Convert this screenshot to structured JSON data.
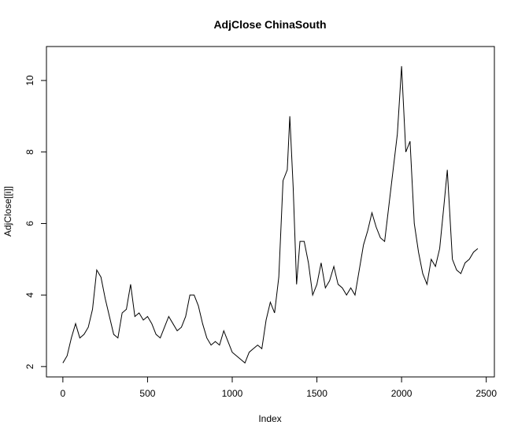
{
  "chart_data": {
    "type": "line",
    "title": "AdjClose ChinaSouth",
    "x_label": "Index",
    "y_label": "AdjClose[[i]]",
    "x": [
      0,
      25,
      50,
      75,
      100,
      125,
      150,
      175,
      200,
      225,
      250,
      275,
      300,
      325,
      350,
      375,
      400,
      425,
      450,
      475,
      500,
      525,
      550,
      575,
      600,
      625,
      650,
      675,
      700,
      725,
      750,
      775,
      800,
      825,
      850,
      875,
      900,
      925,
      950,
      975,
      1000,
      1025,
      1050,
      1075,
      1100,
      1125,
      1150,
      1175,
      1200,
      1225,
      1250,
      1275,
      1300,
      1325,
      1340,
      1360,
      1380,
      1400,
      1425,
      1450,
      1475,
      1500,
      1525,
      1550,
      1575,
      1600,
      1625,
      1650,
      1675,
      1700,
      1725,
      1750,
      1775,
      1800,
      1825,
      1850,
      1875,
      1900,
      1925,
      1950,
      1975,
      2000,
      2025,
      2050,
      2075,
      2100,
      2125,
      2150,
      2175,
      2200,
      2225,
      2250,
      2270,
      2300,
      2325,
      2350,
      2375,
      2400,
      2425,
      2450
    ],
    "series": [
      {
        "name": "AdjClose",
        "color": "#000000",
        "values": [
          2.1,
          2.3,
          2.8,
          3.2,
          2.8,
          2.9,
          3.1,
          3.6,
          4.7,
          4.5,
          3.9,
          3.4,
          2.9,
          2.8,
          3.5,
          3.6,
          4.3,
          3.4,
          3.5,
          3.3,
          3.4,
          3.2,
          2.9,
          2.8,
          3.1,
          3.4,
          3.2,
          3.0,
          3.1,
          3.4,
          4.0,
          4.0,
          3.7,
          3.2,
          2.8,
          2.6,
          2.7,
          2.6,
          3.0,
          2.7,
          2.4,
          2.3,
          2.2,
          2.1,
          2.4,
          2.5,
          2.6,
          2.5,
          3.3,
          3.8,
          3.5,
          4.5,
          7.2,
          7.5,
          9.0,
          7.0,
          4.3,
          5.5,
          5.5,
          4.9,
          4.0,
          4.3,
          4.9,
          4.2,
          4.4,
          4.8,
          4.3,
          4.2,
          4.0,
          4.2,
          4.0,
          4.7,
          5.4,
          5.8,
          6.3,
          5.9,
          5.6,
          5.5,
          6.5,
          7.5,
          8.5,
          10.4,
          8.0,
          8.3,
          6.0,
          5.2,
          4.6,
          4.3,
          5.0,
          4.8,
          5.3,
          6.5,
          7.5,
          5.0,
          4.7,
          4.6,
          4.9,
          5.0,
          5.2,
          5.3
        ]
      }
    ],
    "xlim": [
      -97,
      2548
    ],
    "xticks": [
      0,
      500,
      1000,
      1500,
      2000,
      2500
    ],
    "ylim": [
      1.71,
      10.95
    ],
    "yticks": [
      2,
      4,
      6,
      8,
      10
    ]
  }
}
